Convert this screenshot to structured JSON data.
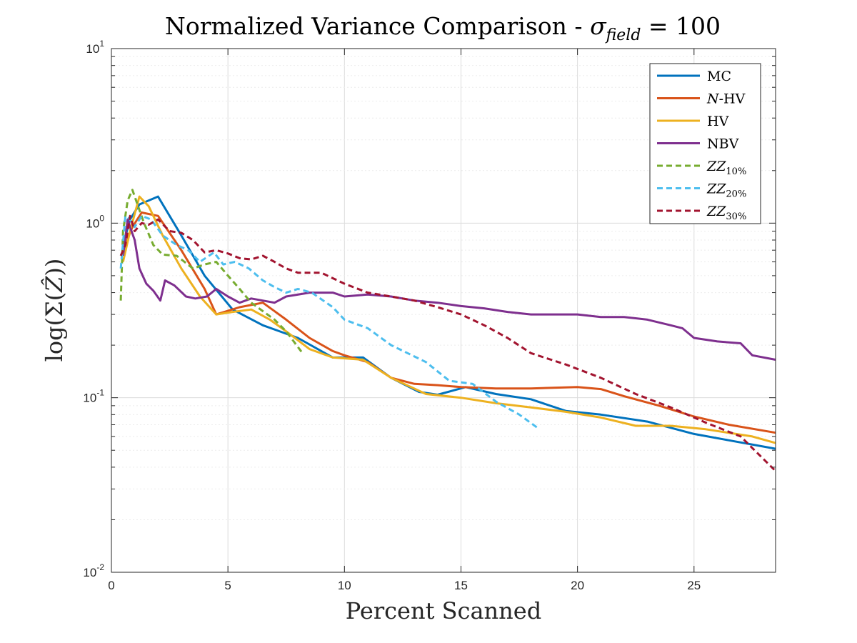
{
  "chart_data": {
    "type": "line",
    "title": "Normalized Variance Comparison - σfield = 100",
    "title_parts": {
      "main": "Normalized Variance Comparison - ",
      "sym": "σ",
      "sub": "field",
      "tail": " = 100"
    },
    "xlabel": "Percent Scanned",
    "ylabel": "log(Σ(Ẑ))",
    "ylabel_parts": {
      "pre": "log(Σ(",
      "mid": "Ẑ",
      "post": "))"
    },
    "xlim": [
      0,
      28.5
    ],
    "ylim": [
      0.01,
      10
    ],
    "yscale": "log",
    "grid": true,
    "legend_position": "top-right",
    "x_ticks": [
      0,
      5,
      10,
      15,
      20,
      25
    ],
    "x_tick_labels": [
      "0",
      "5",
      "10",
      "15",
      "20",
      "25"
    ],
    "y_ticks": [
      0.01,
      0.1,
      1,
      10
    ],
    "y_tick_labels": [
      {
        "base": "10",
        "exp": "-2"
      },
      {
        "base": "10",
        "exp": "-1"
      },
      {
        "base": "10",
        "exp": "0"
      },
      {
        "base": "10",
        "exp": "1"
      }
    ],
    "series": [
      {
        "name": "MC",
        "legend": {
          "main": "MC",
          "sub": ""
        },
        "color": "#0072bd",
        "dashed": false,
        "x": [
          0.5,
          0.8,
          1.2,
          2.0,
          3.0,
          4.0,
          5.2,
          6.5,
          8.0,
          9.5,
          10.2,
          10.8,
          12.0,
          13.2,
          14.0,
          15.2,
          16.5,
          18.0,
          19.5,
          21.0,
          23.0,
          25.0,
          26.5,
          28.5
        ],
        "y": [
          0.75,
          1.05,
          1.28,
          1.42,
          0.85,
          0.5,
          0.32,
          0.26,
          0.22,
          0.17,
          0.17,
          0.17,
          0.13,
          0.108,
          0.104,
          0.115,
          0.105,
          0.098,
          0.084,
          0.08,
          0.073,
          0.062,
          0.057,
          0.051
        ]
      },
      {
        "name": "N-HV",
        "legend": {
          "main": "N",
          "sub": "-HV"
        },
        "color": "#d95319",
        "dashed": false,
        "x": [
          0.5,
          0.9,
          1.3,
          2.0,
          3.0,
          4.0,
          4.5,
          5.5,
          6.5,
          7.5,
          8.5,
          9.5,
          10.0,
          11.0,
          12.0,
          13.0,
          14.0,
          15.0,
          16.5,
          18.0,
          20.0,
          21.0,
          22.0,
          23.5,
          25.0,
          26.5,
          28.5
        ],
        "y": [
          0.7,
          0.95,
          1.15,
          1.1,
          0.7,
          0.42,
          0.3,
          0.33,
          0.35,
          0.28,
          0.22,
          0.185,
          0.175,
          0.16,
          0.13,
          0.12,
          0.118,
          0.115,
          0.113,
          0.113,
          0.115,
          0.112,
          0.102,
          0.09,
          0.078,
          0.07,
          0.063
        ]
      },
      {
        "name": "HV",
        "legend": {
          "main": "HV",
          "sub": ""
        },
        "color": "#edb120",
        "dashed": false,
        "x": [
          0.5,
          0.8,
          1.2,
          1.6,
          2.2,
          3.0,
          3.8,
          4.5,
          5.2,
          6.0,
          6.8,
          7.5,
          8.5,
          9.5,
          10.8,
          12.0,
          13.5,
          15.0,
          16.5,
          18.0,
          19.5,
          21.0,
          22.5,
          24.0,
          25.5,
          27.5,
          28.5
        ],
        "y": [
          0.6,
          0.9,
          1.42,
          1.25,
          0.85,
          0.55,
          0.38,
          0.3,
          0.31,
          0.32,
          0.28,
          0.24,
          0.19,
          0.17,
          0.165,
          0.13,
          0.105,
          0.1,
          0.093,
          0.088,
          0.083,
          0.077,
          0.069,
          0.069,
          0.066,
          0.06,
          0.055
        ]
      },
      {
        "name": "NBV",
        "legend": {
          "main": "NBV",
          "sub": ""
        },
        "color": "#7e2f8e",
        "dashed": false,
        "x": [
          0.5,
          0.7,
          0.8,
          1.0,
          1.2,
          1.5,
          1.8,
          2.1,
          2.3,
          2.7,
          3.2,
          3.6,
          4.1,
          4.5,
          5.0,
          5.5,
          6.0,
          7.0,
          7.5,
          8.5,
          9.5,
          10.0,
          11.0,
          12.0,
          13.0,
          14.0,
          15.0,
          16.0,
          17.0,
          18.0,
          19.0,
          20.0,
          21.0,
          22.0,
          23.0,
          24.0,
          24.5,
          25.0,
          26.0,
          27.0,
          27.5,
          28.5
        ],
        "y": [
          0.65,
          1.05,
          0.95,
          0.8,
          0.55,
          0.45,
          0.41,
          0.36,
          0.47,
          0.44,
          0.38,
          0.37,
          0.38,
          0.42,
          0.38,
          0.35,
          0.37,
          0.35,
          0.38,
          0.4,
          0.4,
          0.38,
          0.39,
          0.38,
          0.36,
          0.35,
          0.335,
          0.325,
          0.31,
          0.3,
          0.3,
          0.3,
          0.29,
          0.29,
          0.28,
          0.26,
          0.25,
          0.22,
          0.21,
          0.205,
          0.175,
          0.165
        ]
      },
      {
        "name": "ZZ 10%",
        "legend": {
          "main": "ZZ",
          "sub": "10%"
        },
        "color": "#77ac30",
        "dashed": true,
        "x": [
          0.4,
          0.5,
          0.7,
          0.9,
          1.1,
          1.4,
          1.8,
          2.2,
          2.8,
          3.5,
          4.0,
          4.5,
          5.0,
          5.5,
          6.0,
          7.0,
          7.5,
          8.2
        ],
        "y": [
          0.36,
          0.9,
          1.35,
          1.55,
          1.3,
          1.0,
          0.75,
          0.66,
          0.65,
          0.55,
          0.58,
          0.6,
          0.5,
          0.42,
          0.35,
          0.28,
          0.24,
          0.18
        ]
      },
      {
        "name": "ZZ 20%",
        "legend": {
          "main": "ZZ",
          "sub": "20%"
        },
        "color": "#4dbeee",
        "dashed": true,
        "x": [
          0.4,
          0.6,
          0.8,
          1.0,
          1.3,
          1.7,
          2.2,
          2.8,
          3.3,
          3.8,
          4.4,
          4.8,
          5.3,
          5.9,
          6.5,
          7.0,
          7.5,
          8.0,
          8.6,
          9.5,
          10.0,
          11.0,
          12.0,
          13.5,
          14.5,
          15.5,
          16.5,
          17.5,
          18.3
        ],
        "y": [
          0.55,
          1.1,
          1.05,
          0.95,
          1.1,
          1.05,
          0.85,
          0.75,
          0.7,
          0.6,
          0.68,
          0.58,
          0.6,
          0.55,
          0.47,
          0.43,
          0.4,
          0.42,
          0.4,
          0.33,
          0.28,
          0.25,
          0.2,
          0.16,
          0.125,
          0.12,
          0.095,
          0.08,
          0.067
        ]
      },
      {
        "name": "ZZ 30%",
        "legend": {
          "main": "ZZ",
          "sub": "30%"
        },
        "color": "#a2142f",
        "dashed": true,
        "x": [
          0.4,
          0.6,
          0.8,
          1.0,
          1.3,
          1.6,
          2.0,
          2.5,
          3.0,
          3.5,
          4.0,
          4.5,
          5.0,
          5.5,
          6.0,
          6.5,
          7.0,
          7.5,
          8.0,
          9.0,
          10.0,
          11.0,
          12.0,
          13.0,
          14.0,
          15.0,
          16.0,
          17.0,
          18.0,
          19.5,
          21.0,
          22.5,
          24.0,
          25.5,
          27.0,
          28.5
        ],
        "y": [
          0.65,
          0.75,
          1.1,
          0.9,
          1.0,
          0.98,
          1.05,
          0.9,
          0.88,
          0.8,
          0.68,
          0.7,
          0.67,
          0.63,
          0.62,
          0.65,
          0.6,
          0.55,
          0.52,
          0.52,
          0.45,
          0.4,
          0.38,
          0.36,
          0.33,
          0.3,
          0.26,
          0.22,
          0.18,
          0.155,
          0.13,
          0.105,
          0.088,
          0.072,
          0.06,
          0.038
        ]
      }
    ]
  }
}
